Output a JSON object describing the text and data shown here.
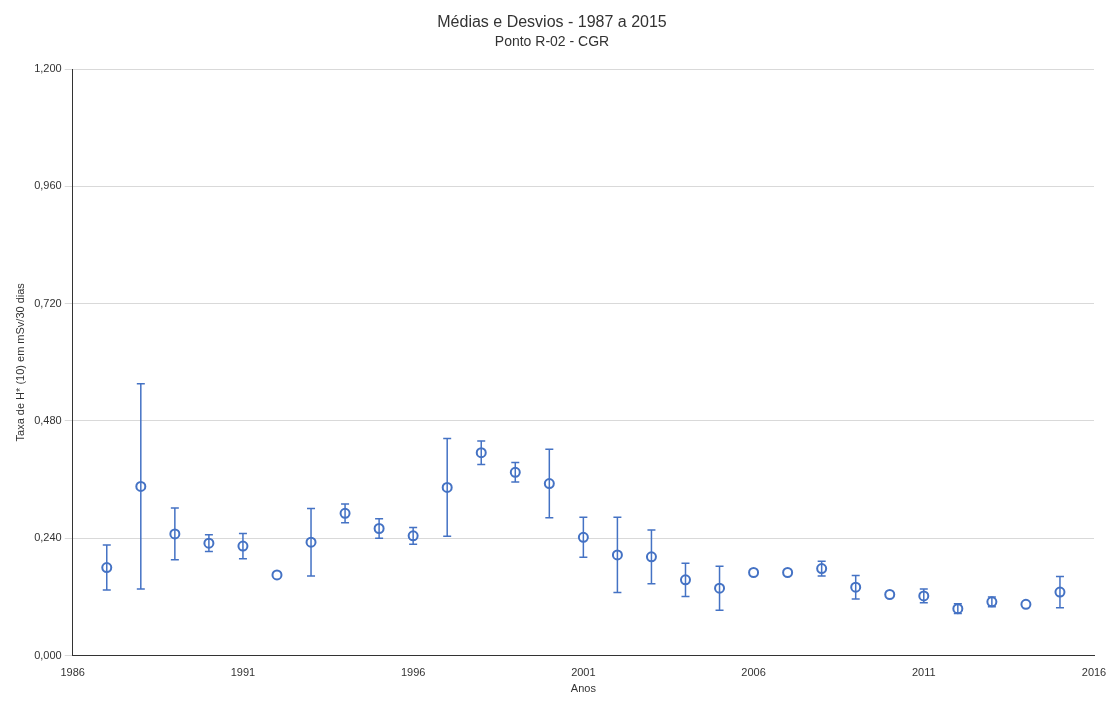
{
  "chart_data": {
    "type": "scatter",
    "title": "Médias e Desvios - 1987 a 2015",
    "subtitle": "Ponto R-02 - CGR",
    "xlabel": "Anos",
    "ylabel": "Taxa de H* (10) em mSv/30 dias",
    "x": [
      1987,
      1988,
      1989,
      1990,
      1991,
      1992,
      1993,
      1994,
      1995,
      1996,
      1997,
      1998,
      1999,
      2000,
      2001,
      2002,
      2003,
      2004,
      2005,
      2006,
      2007,
      2008,
      2009,
      2010,
      2011,
      2012,
      2013,
      2014,
      2015
    ],
    "values": [
      0.18,
      0.346,
      0.249,
      0.23,
      0.224,
      0.165,
      0.232,
      0.291,
      0.26,
      0.245,
      0.344,
      0.415,
      0.375,
      0.352,
      0.242,
      0.206,
      0.202,
      0.155,
      0.138,
      0.17,
      0.17,
      0.178,
      0.14,
      0.125,
      0.122,
      0.096,
      0.11,
      0.105,
      0.13
    ],
    "errors": [
      0.046,
      0.21,
      0.053,
      0.017,
      0.026,
      null,
      0.069,
      0.019,
      0.02,
      0.017,
      0.1,
      0.024,
      0.02,
      0.07,
      0.041,
      0.077,
      0.055,
      0.034,
      0.045,
      null,
      null,
      0.015,
      0.024,
      null,
      0.014,
      0.01,
      0.01,
      null,
      0.032
    ],
    "color": "#4472c4",
    "marker": "circle",
    "xlim": [
      1986,
      2016
    ],
    "xticks": [
      1986,
      1991,
      1996,
      2001,
      2006,
      2011,
      2016
    ],
    "ylim": [
      0,
      1.2
    ],
    "yticks": [
      {
        "value": 0,
        "label": "0,000"
      },
      {
        "value": 0.24,
        "label": "0,240"
      },
      {
        "value": 0.48,
        "label": "0,480"
      },
      {
        "value": 0.72,
        "label": "0,720"
      },
      {
        "value": 0.96,
        "label": "0,960"
      },
      {
        "value": 1.2,
        "label": "1,200"
      }
    ],
    "grid": "y",
    "legend": false
  }
}
